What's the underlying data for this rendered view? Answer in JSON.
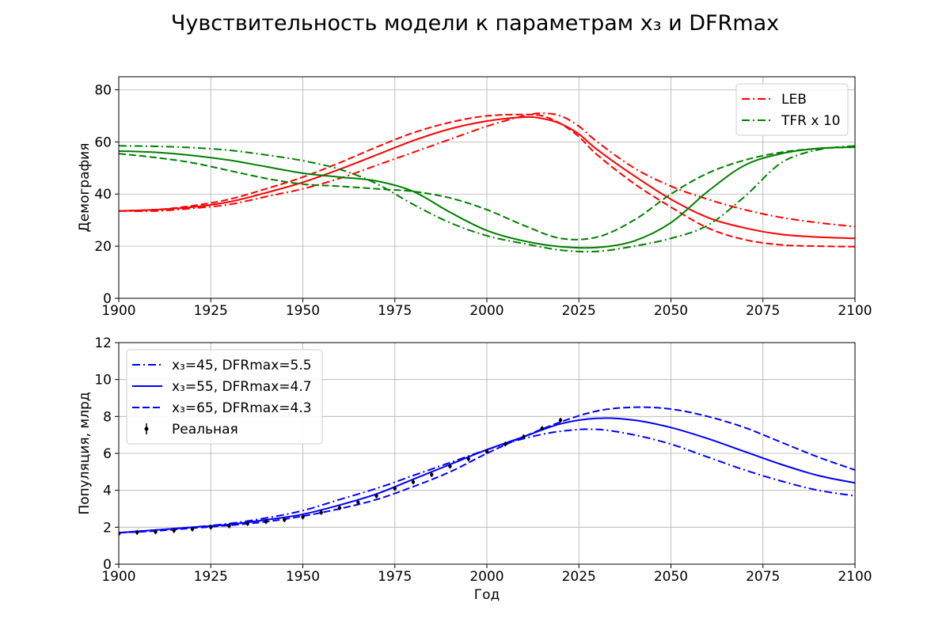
{
  "figure": {
    "title": "Чувствительность модели к параметрам x₃ и DFRmax"
  },
  "chart_data": [
    {
      "type": "line",
      "ylabel": "Демография",
      "xlabel": "",
      "xlim": [
        1900,
        2100
      ],
      "ylim": [
        0,
        85
      ],
      "xticks": [
        "1900",
        "1925",
        "1950",
        "1975",
        "2000",
        "2025",
        "2050",
        "2075",
        "2100"
      ],
      "yticks": [
        "0",
        "20",
        "40",
        "60",
        "80"
      ],
      "grid": true,
      "legend_position": "top-right",
      "legend": [
        {
          "label": "LEB",
          "color": "#ff0000",
          "dash": "dashdot"
        },
        {
          "label": "TFR x 10",
          "color": "#008000",
          "dash": "dashdot"
        }
      ],
      "colors": {
        "LEB": "#ff0000",
        "TFR": "#008000"
      },
      "series": [
        {
          "group": "LEB",
          "variant": "x3=45",
          "color": "#ff0000",
          "dash": "dashdot",
          "x": [
            1900,
            1910,
            1920,
            1930,
            1940,
            1950,
            1960,
            1970,
            1980,
            1990,
            2000,
            2010,
            2015,
            2020,
            2025,
            2030,
            2040,
            2050,
            2060,
            2070,
            2080,
            2090,
            2100
          ],
          "y": [
            33.5,
            33.5,
            34.5,
            36,
            39,
            42,
            46,
            51,
            56,
            61,
            66,
            70,
            71,
            70,
            66,
            60,
            50,
            43,
            38,
            34,
            31,
            29,
            27.5
          ]
        },
        {
          "group": "LEB",
          "variant": "x3=55",
          "color": "#ff0000",
          "dash": "solid",
          "x": [
            1900,
            1910,
            1920,
            1930,
            1940,
            1950,
            1960,
            1970,
            1980,
            1990,
            2000,
            2010,
            2015,
            2020,
            2025,
            2030,
            2040,
            2050,
            2060,
            2070,
            2080,
            2090,
            2100
          ],
          "y": [
            33.5,
            34,
            35,
            37,
            40.5,
            44.5,
            49.5,
            55,
            60.5,
            65,
            68,
            69.5,
            69,
            67,
            63,
            57,
            47,
            38,
            31,
            27,
            24.5,
            23.5,
            23
          ]
        },
        {
          "group": "LEB",
          "variant": "x3=65",
          "color": "#ff0000",
          "dash": "dashed",
          "x": [
            1900,
            1910,
            1920,
            1930,
            1940,
            1950,
            1960,
            1970,
            1980,
            1990,
            2000,
            2010,
            2015,
            2020,
            2025,
            2030,
            2040,
            2050,
            2060,
            2070,
            2080,
            2090,
            2100
          ],
          "y": [
            33.5,
            34,
            35.5,
            38,
            42,
            46.5,
            52,
            58,
            63.5,
            67.5,
            70,
            70.5,
            70,
            67,
            62,
            55,
            44,
            35,
            27,
            22.5,
            20.5,
            20,
            19.8
          ]
        },
        {
          "group": "TFR",
          "variant": "x3=45",
          "color": "#008000",
          "dash": "dashdot",
          "x": [
            1900,
            1910,
            1920,
            1930,
            1940,
            1950,
            1960,
            1970,
            1980,
            1990,
            2000,
            2010,
            2020,
            2030,
            2040,
            2050,
            2060,
            2070,
            2080,
            2090,
            2100
          ],
          "y": [
            58.5,
            58.3,
            57.8,
            56.8,
            55,
            52.8,
            49.5,
            44,
            36,
            29,
            24,
            21,
            18.5,
            18,
            20,
            23,
            28,
            39,
            52,
            57,
            58.5
          ]
        },
        {
          "group": "TFR",
          "variant": "x3=55",
          "color": "#008000",
          "dash": "solid",
          "x": [
            1900,
            1910,
            1920,
            1930,
            1940,
            1950,
            1960,
            1970,
            1980,
            1990,
            2000,
            2010,
            2020,
            2030,
            2040,
            2050,
            2060,
            2070,
            2080,
            2090,
            2100
          ],
          "y": [
            56.5,
            56,
            54.8,
            53,
            50.5,
            48,
            46.5,
            45,
            41,
            33,
            26,
            22,
            19.8,
            19.5,
            22,
            29,
            41,
            51,
            55.5,
            57.5,
            58
          ]
        },
        {
          "group": "TFR",
          "variant": "x3=65",
          "color": "#008000",
          "dash": "dashed",
          "x": [
            1900,
            1910,
            1920,
            1930,
            1940,
            1950,
            1960,
            1970,
            1980,
            1990,
            2000,
            2010,
            2020,
            2030,
            2040,
            2050,
            2060,
            2070,
            2080,
            2090,
            2100
          ],
          "y": [
            55.5,
            54,
            52,
            49,
            46,
            43.8,
            43,
            42,
            41,
            38.5,
            34,
            28,
            23,
            23.5,
            30,
            40,
            48,
            53,
            56,
            57.5,
            58
          ]
        }
      ]
    },
    {
      "type": "line",
      "ylabel": "Популяция, млрд",
      "xlabel": "Год",
      "xlim": [
        1900,
        2100
      ],
      "ylim": [
        0,
        12
      ],
      "xticks": [
        "1900",
        "1925",
        "1950",
        "1975",
        "2000",
        "2025",
        "2050",
        "2075",
        "2100"
      ],
      "yticks": [
        "0",
        "2",
        "4",
        "6",
        "8",
        "10",
        "12"
      ],
      "grid": true,
      "legend_position": "top-left",
      "legend": [
        {
          "label": "x₃=45, DFRmax=5.5",
          "color": "#0000ff",
          "dash": "dashdot"
        },
        {
          "label": "x₃=55, DFRmax=4.7",
          "color": "#0000ff",
          "dash": "solid"
        },
        {
          "label": "x₃=65, DFRmax=4.3",
          "color": "#0000ff",
          "dash": "dashed"
        },
        {
          "label": "Реальная",
          "color": "#000000",
          "dash": "errorbar"
        }
      ],
      "series": [
        {
          "name": "x₃=45, DFRmax=5.5",
          "color": "#0000ff",
          "dash": "dashdot",
          "x": [
            1900,
            1910,
            1920,
            1930,
            1940,
            1950,
            1960,
            1970,
            1980,
            1990,
            2000,
            2010,
            2020,
            2030,
            2040,
            2050,
            2060,
            2070,
            2080,
            2090,
            2100
          ],
          "y": [
            1.7,
            1.85,
            2.0,
            2.2,
            2.5,
            2.9,
            3.5,
            4.1,
            4.8,
            5.5,
            6.2,
            6.8,
            7.2,
            7.3,
            7.0,
            6.5,
            5.8,
            5.1,
            4.5,
            4.0,
            3.7
          ]
        },
        {
          "name": "x₃=55, DFRmax=4.7",
          "color": "#0000ff",
          "dash": "solid",
          "x": [
            1900,
            1910,
            1920,
            1930,
            1940,
            1950,
            1960,
            1970,
            1980,
            1990,
            2000,
            2010,
            2020,
            2030,
            2040,
            2050,
            2060,
            2070,
            2080,
            2090,
            2100
          ],
          "y": [
            1.7,
            1.85,
            2.0,
            2.15,
            2.4,
            2.7,
            3.2,
            3.8,
            4.6,
            5.4,
            6.2,
            6.9,
            7.6,
            7.9,
            7.8,
            7.4,
            6.8,
            6.1,
            5.4,
            4.8,
            4.4
          ]
        },
        {
          "name": "x₃=65, DFRmax=4.3",
          "color": "#0000ff",
          "dash": "dashed",
          "x": [
            1900,
            1910,
            1920,
            1930,
            1940,
            1950,
            1960,
            1970,
            1980,
            1990,
            2000,
            2010,
            2020,
            2030,
            2040,
            2050,
            2060,
            2070,
            2080,
            2090,
            2100
          ],
          "y": [
            1.7,
            1.8,
            1.95,
            2.1,
            2.3,
            2.6,
            3.0,
            3.5,
            4.2,
            5.0,
            6.0,
            6.9,
            7.7,
            8.3,
            8.5,
            8.4,
            8.0,
            7.4,
            6.6,
            5.8,
            5.1
          ]
        },
        {
          "name": "Реальная",
          "color": "#000000",
          "dash": "errorbar",
          "x": [
            1900,
            1905,
            1910,
            1915,
            1920,
            1925,
            1930,
            1935,
            1940,
            1945,
            1950,
            1955,
            1960,
            1965,
            1970,
            1975,
            1980,
            1985,
            1990,
            1995,
            2000,
            2005,
            2010,
            2015,
            2020
          ],
          "y": [
            1.65,
            1.72,
            1.75,
            1.82,
            1.9,
            2.0,
            2.07,
            2.2,
            2.3,
            2.4,
            2.55,
            2.8,
            3.05,
            3.35,
            3.7,
            4.1,
            4.45,
            4.85,
            5.3,
            5.7,
            6.1,
            6.5,
            6.9,
            7.35,
            7.8
          ]
        }
      ]
    }
  ]
}
